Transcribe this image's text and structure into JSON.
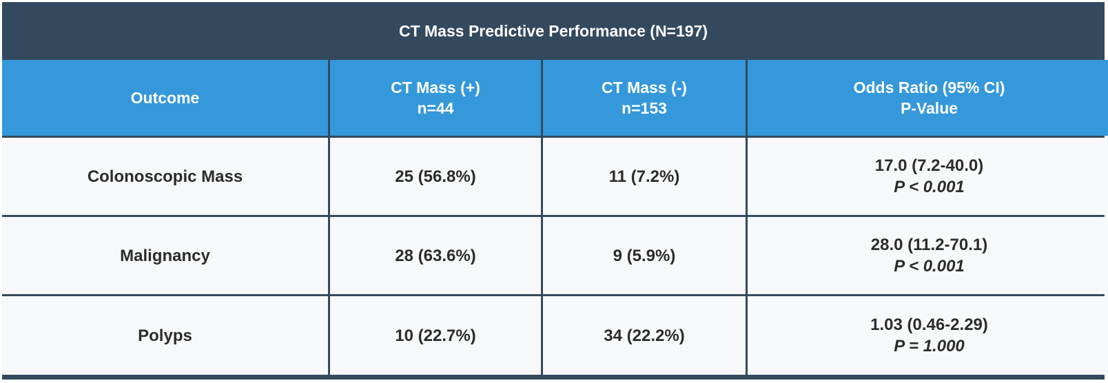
{
  "title": "CT Mass Predictive Performance (N=197)",
  "columns": [
    {
      "line1": "Outcome",
      "line2": ""
    },
    {
      "line1": "CT Mass (+)",
      "line2": "n=44"
    },
    {
      "line1": "CT Mass (-)",
      "line2": "n=153"
    },
    {
      "line1": "Odds Ratio (95% CI)",
      "line2": "P-Value"
    }
  ],
  "rows": [
    {
      "outcome": "Colonoscopic Mass",
      "ct_pos": "25 (56.8%)",
      "ct_neg": "11 (7.2%)",
      "odds_ratio": "17.0 (7.2-40.0)",
      "p_value": "P < 0.001"
    },
    {
      "outcome": "Malignancy",
      "ct_pos": "28 (63.6%)",
      "ct_neg": "9 (5.9%)",
      "odds_ratio": "28.0 (11.2-70.1)",
      "p_value": "P < 0.001"
    },
    {
      "outcome": "Polyps",
      "ct_pos": "10 (22.7%)",
      "ct_neg": "34 (22.2%)",
      "odds_ratio": "1.03 (0.46-2.29)",
      "p_value": "P = 1.000"
    }
  ],
  "colors": {
    "title_background": "#34495e",
    "header_background": "#3498db",
    "cell_background": "#f7f8fa",
    "text": "#2c2c2c"
  }
}
